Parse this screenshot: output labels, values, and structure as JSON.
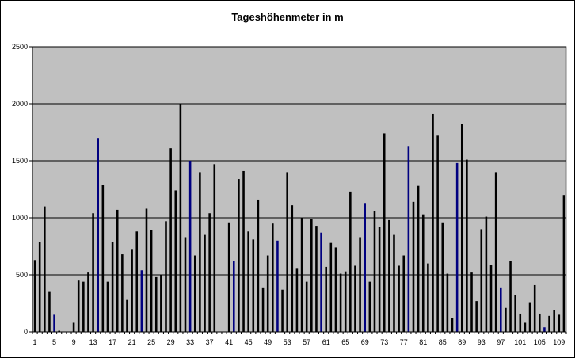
{
  "chart_data": {
    "type": "bar",
    "title": "Tageshöhenmeter in m",
    "xlabel": "",
    "ylabel": "",
    "ylim": [
      0,
      2500
    ],
    "yticks": [
      0,
      500,
      1000,
      1500,
      2000,
      2500
    ],
    "grid": true,
    "legend": "none",
    "x_tick_labels": [
      "1",
      "5",
      "9",
      "13",
      "17",
      "21",
      "25",
      "29",
      "33",
      "37",
      "41",
      "45",
      "49",
      "53",
      "57",
      "61",
      "65",
      "69",
      "73",
      "77",
      "81",
      "85",
      "89",
      "93",
      "97",
      "101",
      "105",
      "109"
    ],
    "x_tick_days": [
      1,
      5,
      9,
      13,
      17,
      21,
      25,
      29,
      33,
      37,
      41,
      45,
      49,
      53,
      57,
      61,
      65,
      69,
      73,
      77,
      81,
      85,
      89,
      93,
      97,
      101,
      105,
      109
    ],
    "x": [
      1,
      2,
      3,
      4,
      5,
      6,
      7,
      8,
      9,
      10,
      11,
      12,
      13,
      14,
      15,
      16,
      17,
      18,
      19,
      20,
      21,
      22,
      23,
      24,
      25,
      26,
      27,
      28,
      29,
      30,
      31,
      32,
      33,
      34,
      35,
      36,
      37,
      38,
      39,
      40,
      41,
      42,
      43,
      44,
      45,
      46,
      47,
      48,
      49,
      50,
      51,
      52,
      53,
      54,
      55,
      56,
      57,
      58,
      59,
      60,
      61,
      62,
      63,
      64,
      65,
      66,
      67,
      68,
      69,
      70,
      71,
      72,
      73,
      74,
      75,
      76,
      77,
      78,
      79,
      80,
      81,
      82,
      83,
      84,
      85,
      86,
      87,
      88,
      89,
      90,
      91,
      92,
      93,
      94,
      95,
      96,
      97,
      98,
      99,
      100,
      101,
      102,
      103,
      104,
      105,
      106,
      107,
      108,
      109,
      110
    ],
    "values": [
      630,
      790,
      1100,
      350,
      150,
      10,
      0,
      0,
      80,
      450,
      440,
      520,
      1040,
      1700,
      1290,
      440,
      790,
      1070,
      680,
      280,
      720,
      880,
      540,
      1080,
      890,
      480,
      500,
      970,
      1610,
      1240,
      2000,
      830,
      1500,
      670,
      1400,
      850,
      1040,
      1470,
      0,
      0,
      960,
      620,
      1340,
      1410,
      880,
      810,
      1160,
      390,
      670,
      950,
      800,
      370,
      1400,
      1110,
      560,
      1000,
      440,
      990,
      930,
      870,
      570,
      780,
      740,
      510,
      530,
      1230,
      580,
      830,
      1130,
      440,
      1060,
      920,
      1740,
      980,
      850,
      580,
      670,
      1630,
      1140,
      1280,
      1030,
      600,
      1910,
      1720,
      960,
      510,
      120,
      1480,
      1820,
      1510,
      520,
      270,
      900,
      1010,
      590,
      1400,
      390,
      210,
      620,
      320,
      160,
      80,
      260,
      410,
      160,
      40,
      140,
      190,
      150,
      1200
    ],
    "highlighted_x": [
      5,
      14,
      23,
      33,
      42,
      51,
      60,
      69,
      78,
      88,
      97,
      106
    ],
    "colors": {
      "bar": "#000000",
      "highlight": "#000080",
      "plot_bg": "#c0c0c0",
      "grid": "#000000"
    }
  }
}
